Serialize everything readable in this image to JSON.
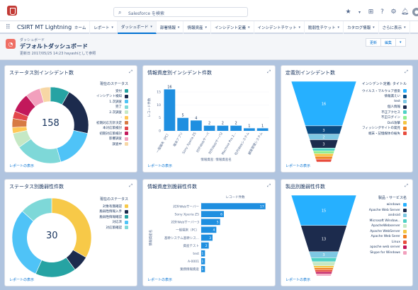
{
  "topbar": {
    "search_placeholder": "Salesforce を検索",
    "avatar_initial": "👤"
  },
  "nav": {
    "app_name": "CSIRT MT Lightning",
    "tabs": [
      {
        "label": "ホーム",
        "chevron": false,
        "active": false
      },
      {
        "label": "レポート",
        "chevron": true,
        "active": false
      },
      {
        "label": "ダッシュボード",
        "chevron": true,
        "active": true
      },
      {
        "label": "部署情報",
        "chevron": true,
        "active": false
      },
      {
        "label": "情報資産",
        "chevron": true,
        "active": false
      },
      {
        "label": "インシデント定義",
        "chevron": true,
        "active": false
      },
      {
        "label": "インシデントチケット",
        "chevron": true,
        "active": false
      },
      {
        "label": "脆弱性チケット",
        "chevron": true,
        "active": false
      },
      {
        "label": "カタログ情報",
        "chevron": true,
        "active": false
      },
      {
        "label": "さらに表示",
        "chevron": true,
        "active": false
      }
    ]
  },
  "header": {
    "small": "ダッシュボード",
    "title": "デフォルトダッシュボード",
    "meta": "更新日 2017/05/25 14:23 hayashiとして参照",
    "buttons": [
      "更新",
      "編集",
      "▾"
    ]
  },
  "footer_link": "レポートの表示",
  "panels": {
    "p1": {
      "title": "ステータス別インシデント数",
      "legend_title": "現在のステータス",
      "center": "158",
      "chart_data": {
        "type": "donut",
        "total": 158,
        "labels": [
          "受付",
          "インシデント検知",
          "1.次調査",
          "完了",
          "2.次調査",
          "-",
          "初期対応方針決定",
          "本対応策検討",
          "初期対応策検討",
          "影響調査",
          "調査中"
        ],
        "values": [
          13,
          32,
          27,
          31,
          10,
          4,
          6,
          5,
          13,
          10,
          7
        ],
        "colors": [
          "#26a3a3",
          "#1c2b4d",
          "#4fc3f7",
          "#7ed8d8",
          "#c5e8c5",
          "#ffc857",
          "#d77a43",
          "#e3474b",
          "#c2185b",
          "#f2a0bd",
          "#f7d7a5"
        ]
      }
    },
    "p2": {
      "title": "情報資産別インシデント件数",
      "ylabel": "レコード件数",
      "xlabel": "情報資産: 情報資産名",
      "chart_data": {
        "type": "bar",
        "categories": [
          "一般端末（PC）",
          "端末アプリ",
          "Sony Xperia Z5",
          "対外Webサーバ",
          "対外Webサーバ2",
          "Machine Pro 2...",
          "社内Webシステム",
          "顧客管理システム"
        ],
        "values": [
          16,
          5,
          4,
          2,
          2,
          2,
          1,
          1
        ]
      }
    },
    "p3": {
      "title": "定義別インシデント数",
      "legend_title": "インシデント定義: タイトル",
      "chart_data": {
        "type": "funnel",
        "labels": [
          "ウイルス・マルウェア感染",
          "情報漏えい",
          "test",
          "個人情報",
          "不正アクセス",
          "不正ログイン",
          "DoS攻撃",
          "フィッシングサイトの発見",
          "端末・記憶媒体の紛失"
        ],
        "values": [
          16,
          3,
          2,
          3,
          1,
          1,
          1,
          1,
          1
        ],
        "colors": [
          "#26b0ff",
          "#0b4a80",
          "#7ec8e3",
          "#1c2b4d",
          "#4fd1c5",
          "#90ee90",
          "#f5c542",
          "#f08020",
          "#e84c3d"
        ]
      }
    },
    "p4": {
      "title": "ステータス別脆弱性件数",
      "legend_title": "現在のステータス",
      "center": "30",
      "chart_data": {
        "type": "donut",
        "total": 30,
        "labels": [
          "対象有無確認",
          "脆弱性情報入手",
          "脆弱性情報確認",
          "対応済",
          "対応策確認"
        ],
        "values": [
          10,
          2,
          5,
          9,
          4
        ],
        "colors": [
          "#f7c948",
          "#1c2b4d",
          "#26a3a3",
          "#4fc3f7",
          "#7ed8d8"
        ]
      }
    },
    "p5": {
      "title": "情報資産別脆弱性件数",
      "xlabel": "レコード件数",
      "ylabel": "情報資産名",
      "chart_data": {
        "type": "hbar",
        "categories": [
          "対外Webサーバー",
          "Sony Xperia Z5",
          "対外Webサーバー3",
          "一般端末（PC）",
          "基幹システム基幹シス...",
          "資産テスト",
          "test",
          "A-0001",
          "業務情報資産"
        ],
        "values": [
          17,
          6,
          5,
          4,
          3,
          2,
          1,
          1,
          1
        ]
      }
    },
    "p6": {
      "title": "製品別脆弱性件数",
      "legend_title": "製品・サービス名",
      "chart_data": {
        "type": "funnel",
        "labels": [
          "windows",
          "Apache Web Server",
          "android",
          "Microsoft Window...",
          "ApacheWebserver",
          "Apache WebServer",
          "Apache Web Serer",
          "Linux",
          "apache web server",
          "Skype for Windows"
        ],
        "values": [
          15,
          13,
          3,
          2,
          2,
          1,
          1,
          1,
          1,
          1
        ],
        "colors": [
          "#26b0ff",
          "#1c2b4d",
          "#7ec8e3",
          "#4fd1c5",
          "#c5e8c5",
          "#f5c542",
          "#f08020",
          "#e84c3d",
          "#c2185b",
          "#f2a0bd"
        ]
      }
    }
  }
}
